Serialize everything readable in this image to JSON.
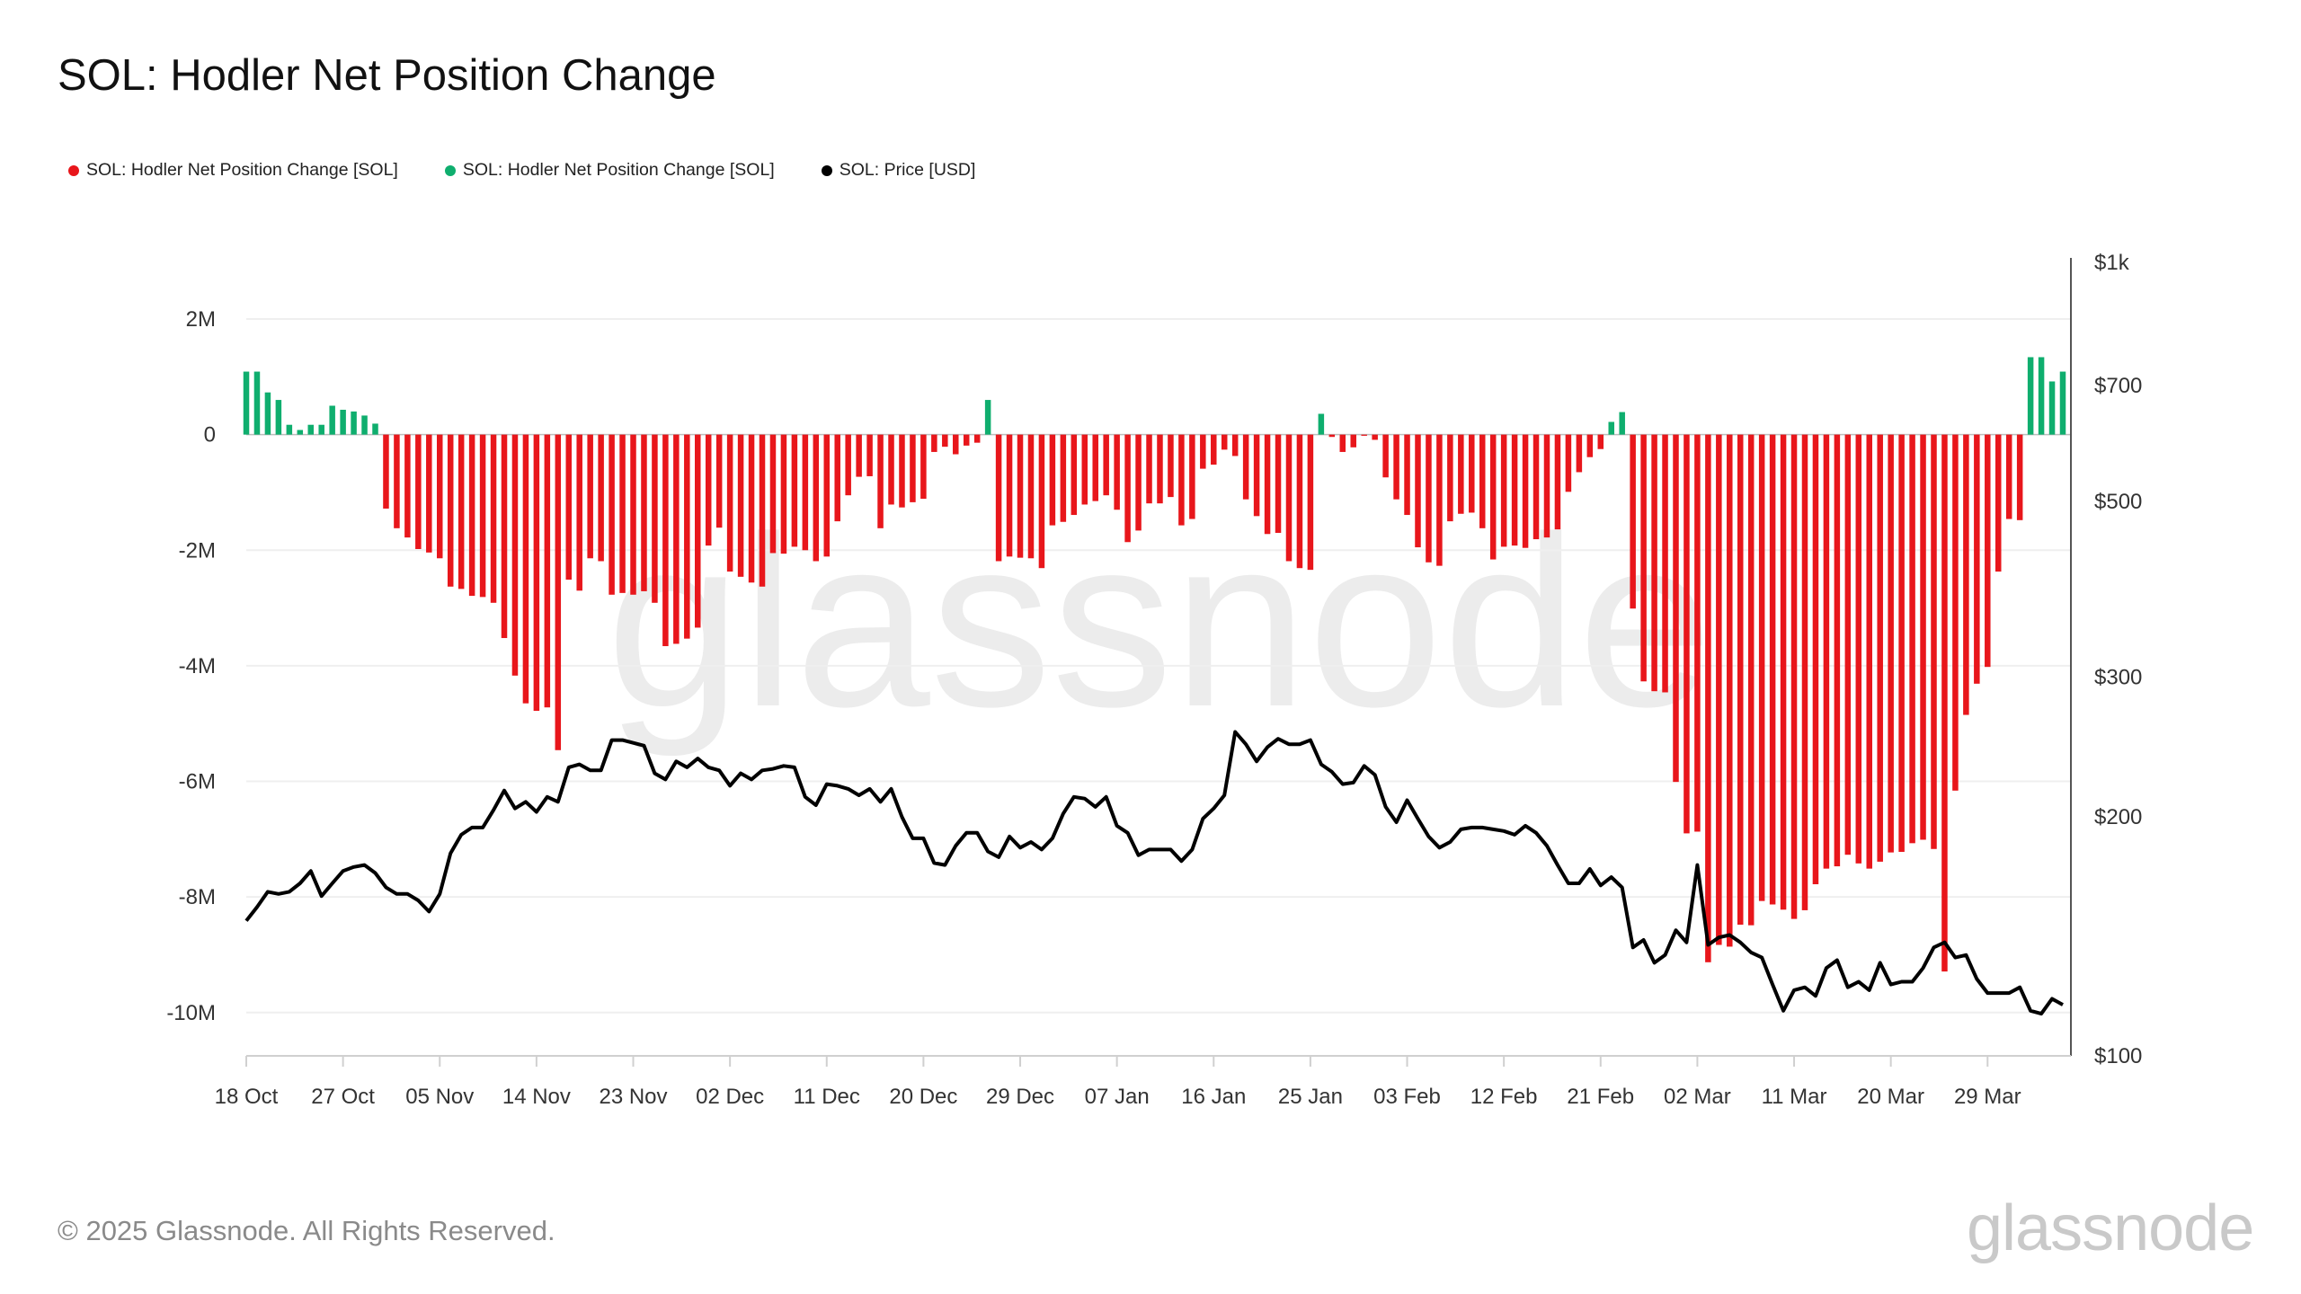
{
  "title": "SOL: Hodler Net Position Change",
  "legend": [
    {
      "label": "SOL: Hodler Net Position Change [SOL]",
      "color": "#e8161b"
    },
    {
      "label": "SOL: Hodler Net Position Change [SOL]",
      "color": "#0fae6e"
    },
    {
      "label": "SOL: Price [USD]",
      "color": "#000000"
    }
  ],
  "footer": "© 2025 Glassnode. All Rights Reserved.",
  "logo": "glassnode",
  "watermark": "glassnode",
  "chart_data": {
    "type": "bar+line",
    "title": "SOL: Hodler Net Position Change",
    "grid": true,
    "legend_position": "top-left",
    "left_axis": {
      "ylim": [
        -10750000,
        2980000
      ],
      "ticks": [
        {
          "label": "2M",
          "value": 2000000
        },
        {
          "label": "0",
          "value": 0
        },
        {
          "label": "-2M",
          "value": -2000000
        },
        {
          "label": "-4M",
          "value": -4000000
        },
        {
          "label": "-6M",
          "value": -6000000
        },
        {
          "label": "-8M",
          "value": -8000000
        },
        {
          "label": "-10M",
          "value": -10000000
        }
      ]
    },
    "right_axis": {
      "scale": "log",
      "ylim": [
        100,
        1000
      ],
      "ticks": [
        {
          "label": "$1k",
          "value": 1000
        },
        {
          "label": "$700",
          "value": 700
        },
        {
          "label": "$500",
          "value": 500
        },
        {
          "label": "$300",
          "value": 300
        },
        {
          "label": "$200",
          "value": 200
        },
        {
          "label": "$100",
          "value": 100
        }
      ]
    },
    "x_ticks": [
      {
        "label": "18 Oct",
        "date": "2024-10-18"
      },
      {
        "label": "27 Oct",
        "date": "2024-10-27"
      },
      {
        "label": "05 Nov",
        "date": "2024-11-05"
      },
      {
        "label": "14 Nov",
        "date": "2024-11-14"
      },
      {
        "label": "23 Nov",
        "date": "2024-11-23"
      },
      {
        "label": "02 Dec",
        "date": "2024-12-02"
      },
      {
        "label": "11 Dec",
        "date": "2024-12-11"
      },
      {
        "label": "20 Dec",
        "date": "2024-12-20"
      },
      {
        "label": "29 Dec",
        "date": "2024-12-29"
      },
      {
        "label": "07 Jan",
        "date": "2025-01-07"
      },
      {
        "label": "16 Jan",
        "date": "2025-01-16"
      },
      {
        "label": "25 Jan",
        "date": "2025-01-25"
      },
      {
        "label": "03 Feb",
        "date": "2025-02-03"
      },
      {
        "label": "12 Feb",
        "date": "2025-02-12"
      },
      {
        "label": "21 Feb",
        "date": "2025-02-21"
      },
      {
        "label": "02 Mar",
        "date": "2025-03-02"
      },
      {
        "label": "11 Mar",
        "date": "2025-03-11"
      },
      {
        "label": "20 Mar",
        "date": "2025-03-20"
      },
      {
        "label": "29 Mar",
        "date": "2025-03-29"
      }
    ],
    "dates": [
      "2024-10-18",
      "2024-10-19",
      "2024-10-20",
      "2024-10-21",
      "2024-10-22",
      "2024-10-23",
      "2024-10-24",
      "2024-10-25",
      "2024-10-26",
      "2024-10-27",
      "2024-10-28",
      "2024-10-29",
      "2024-10-30",
      "2024-10-31",
      "2024-11-01",
      "2024-11-02",
      "2024-11-03",
      "2024-11-04",
      "2024-11-05",
      "2024-11-06",
      "2024-11-07",
      "2024-11-08",
      "2024-11-09",
      "2024-11-10",
      "2024-11-11",
      "2024-11-12",
      "2024-11-13",
      "2024-11-14",
      "2024-11-15",
      "2024-11-16",
      "2024-11-17",
      "2024-11-18",
      "2024-11-19",
      "2024-11-20",
      "2024-11-21",
      "2024-11-22",
      "2024-11-23",
      "2024-11-24",
      "2024-11-25",
      "2024-11-26",
      "2024-11-27",
      "2024-11-28",
      "2024-11-29",
      "2024-11-30",
      "2024-12-01",
      "2024-12-02",
      "2024-12-03",
      "2024-12-04",
      "2024-12-05",
      "2024-12-06",
      "2024-12-07",
      "2024-12-08",
      "2024-12-09",
      "2024-12-10",
      "2024-12-11",
      "2024-12-12",
      "2024-12-13",
      "2024-12-14",
      "2024-12-15",
      "2024-12-16",
      "2024-12-17",
      "2024-12-18",
      "2024-12-19",
      "2024-12-20",
      "2024-12-21",
      "2024-12-22",
      "2024-12-23",
      "2024-12-24",
      "2024-12-25",
      "2024-12-26",
      "2024-12-27",
      "2024-12-28",
      "2024-12-29",
      "2024-12-30",
      "2024-12-31",
      "2025-01-01",
      "2025-01-02",
      "2025-01-03",
      "2025-01-04",
      "2025-01-05",
      "2025-01-06",
      "2025-01-07",
      "2025-01-08",
      "2025-01-09",
      "2025-01-10",
      "2025-01-11",
      "2025-01-12",
      "2025-01-13",
      "2025-01-14",
      "2025-01-15",
      "2025-01-16",
      "2025-01-17",
      "2025-01-18",
      "2025-01-19",
      "2025-01-20",
      "2025-01-21",
      "2025-01-22",
      "2025-01-23",
      "2025-01-24",
      "2025-01-25",
      "2025-01-26",
      "2025-01-27",
      "2025-01-28",
      "2025-01-29",
      "2025-01-30",
      "2025-01-31",
      "2025-02-01",
      "2025-02-02",
      "2025-02-03",
      "2025-02-04",
      "2025-02-05",
      "2025-02-06",
      "2025-02-07",
      "2025-02-08",
      "2025-02-09",
      "2025-02-10",
      "2025-02-11",
      "2025-02-12",
      "2025-02-13",
      "2025-02-14",
      "2025-02-15",
      "2025-02-16",
      "2025-02-17",
      "2025-02-18",
      "2025-02-19",
      "2025-02-20",
      "2025-02-21",
      "2025-02-22",
      "2025-02-23",
      "2025-02-24",
      "2025-02-25",
      "2025-02-26",
      "2025-02-27",
      "2025-02-28",
      "2025-03-01",
      "2025-03-02",
      "2025-03-03",
      "2025-03-04",
      "2025-03-05",
      "2025-03-06",
      "2025-03-07",
      "2025-03-08",
      "2025-03-09",
      "2025-03-10",
      "2025-03-11",
      "2025-03-12",
      "2025-03-13",
      "2025-03-14",
      "2025-03-15",
      "2025-03-16",
      "2025-03-17",
      "2025-03-18",
      "2025-03-19",
      "2025-03-20",
      "2025-03-21",
      "2025-03-22",
      "2025-03-23",
      "2025-03-24",
      "2025-03-25",
      "2025-03-26",
      "2025-03-27",
      "2025-03-28",
      "2025-03-29",
      "2025-03-30",
      "2025-03-31",
      "2025-04-01",
      "2025-04-02",
      "2025-04-03",
      "2025-04-04",
      "2025-04-05"
    ],
    "series": [
      {
        "name": "SOL: Hodler Net Position Change [SOL]",
        "axis": "left",
        "type": "bar",
        "unit": "M SOL",
        "positive_color": "#0fae6e",
        "negative_color": "#e8161b",
        "values": [
          1.09,
          1.09,
          0.73,
          0.6,
          0.17,
          0.08,
          0.17,
          0.17,
          0.5,
          0.43,
          0.4,
          0.33,
          0.19,
          -1.28,
          -1.62,
          -1.78,
          -1.98,
          -2.04,
          -2.14,
          -2.63,
          -2.67,
          -2.79,
          -2.81,
          -2.91,
          -3.52,
          -4.17,
          -4.65,
          -4.78,
          -4.72,
          -5.46,
          -2.51,
          -2.7,
          -2.14,
          -2.19,
          -2.77,
          -2.74,
          -2.77,
          -2.71,
          -2.91,
          -3.66,
          -3.62,
          -3.53,
          -3.34,
          -1.92,
          -1.61,
          -2.37,
          -2.46,
          -2.56,
          -2.63,
          -2.05,
          -2.06,
          -1.94,
          -2.0,
          -2.19,
          -2.11,
          -1.5,
          -1.05,
          -0.73,
          -0.72,
          -1.62,
          -1.21,
          -1.26,
          -1.17,
          -1.11,
          -0.3,
          -0.21,
          -0.34,
          -0.19,
          -0.14,
          0.6,
          -2.19,
          -2.11,
          -2.13,
          -2.14,
          -2.31,
          -1.57,
          -1.51,
          -1.39,
          -1.21,
          -1.15,
          -1.05,
          -1.3,
          -1.86,
          -1.66,
          -1.19,
          -1.19,
          -1.08,
          -1.57,
          -1.46,
          -0.59,
          -0.52,
          -0.26,
          -0.37,
          -1.12,
          -1.41,
          -1.72,
          -1.7,
          -2.19,
          -2.31,
          -2.34,
          0.36,
          -0.04,
          -0.3,
          -0.22,
          -0.02,
          -0.09,
          -0.74,
          -1.12,
          -1.39,
          -1.95,
          -2.21,
          -2.27,
          -1.5,
          -1.37,
          -1.35,
          -1.62,
          -2.16,
          -1.94,
          -1.92,
          -1.96,
          -1.81,
          -1.78,
          -1.64,
          -0.99,
          -0.65,
          -0.39,
          -0.25,
          0.22,
          0.39,
          -3.01,
          -4.27,
          -4.44,
          -4.46,
          -6.01,
          -6.9,
          -6.87,
          -9.13,
          -8.83,
          -8.86,
          -8.48,
          -8.49,
          -8.07,
          -8.13,
          -8.22,
          -8.38,
          -8.23,
          -7.78,
          -7.51,
          -7.47,
          -7.27,
          -7.42,
          -7.51,
          -7.39,
          -7.23,
          -7.22,
          -7.07,
          -7.01,
          -7.17,
          -9.29,
          -6.16,
          -4.85,
          -4.31,
          -4.02,
          -2.37,
          -1.46,
          -1.48,
          1.34,
          1.34,
          0.92,
          1.09
        ]
      },
      {
        "name": "SOL: Price [USD]",
        "axis": "right",
        "type": "line",
        "color": "#000000",
        "values": [
          148,
          154,
          161,
          160,
          161,
          165,
          171,
          159,
          165,
          171,
          173,
          174,
          170,
          163,
          160,
          160,
          157,
          152,
          160,
          180,
          190,
          194,
          194,
          204,
          216,
          205,
          209,
          203,
          212,
          209,
          231,
          233,
          229,
          229,
          250,
          250,
          248,
          246,
          227,
          223,
          235,
          231,
          237,
          231,
          229,
          219,
          227,
          223,
          229,
          230,
          232,
          231,
          212,
          207,
          220,
          219,
          217,
          213,
          217,
          209,
          217,
          200,
          188,
          188,
          175,
          174,
          184,
          191,
          191,
          181,
          178,
          189,
          183,
          186,
          182,
          188,
          202,
          212,
          211,
          206,
          212,
          195,
          191,
          179,
          182,
          182,
          182,
          176,
          182,
          199,
          205,
          213,
          256,
          247,
          235,
          245,
          251,
          247,
          247,
          250,
          233,
          228,
          220,
          221,
          232,
          226,
          206,
          197,
          210,
          199,
          189,
          183,
          186,
          193,
          194,
          194,
          193,
          192,
          190,
          195,
          191,
          184,
          174,
          165,
          165,
          172,
          164,
          168,
          163,
          137,
          140,
          131,
          134,
          144,
          139,
          174,
          138,
          141,
          142,
          139,
          135,
          133,
          123,
          114,
          121,
          122,
          119,
          129,
          132,
          122,
          124,
          121,
          131,
          123,
          124,
          124,
          129,
          137,
          139,
          133,
          134,
          125,
          120,
          120,
          120,
          122,
          114,
          113,
          118,
          116
        ]
      }
    ]
  }
}
